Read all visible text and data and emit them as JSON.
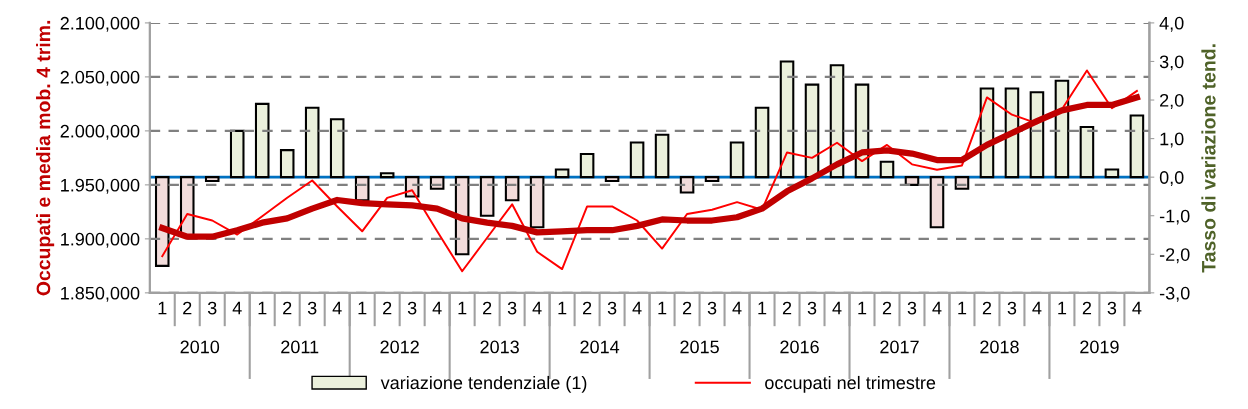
{
  "chart_data": {
    "type": "bar",
    "ylabel": "Occupati e media mob. 4 trim.",
    "y2label": "Tasso di variazione tend.",
    "categories": [
      "1",
      "2",
      "3",
      "4",
      "1",
      "2",
      "3",
      "4",
      "1",
      "2",
      "3",
      "4",
      "1",
      "2",
      "3",
      "4",
      "1",
      "2",
      "3",
      "4",
      "1",
      "2",
      "3",
      "4",
      "1",
      "2",
      "3",
      "4",
      "1",
      "2",
      "3",
      "4",
      "1",
      "2",
      "3",
      "4",
      "1",
      "2",
      "3",
      "4"
    ],
    "annotations": [
      "2010",
      "2011",
      "2012",
      "2013",
      "2014",
      "2015",
      "2016",
      "2017",
      "2018",
      "2019"
    ],
    "series": [
      {
        "name": "variazione tendenziale (1)",
        "axis": "y2",
        "color": "#ebf0dc",
        "colors": [
          "#f2dcdb",
          "#f2dcdb",
          "#f2dcdb",
          "#ebf0dc",
          "#ebf0dc",
          "#ebf0dc",
          "#ebf0dc",
          "#ebf0dc",
          "#f2dcdb",
          "#ebf0dc",
          "#f2dcdb",
          "#f2dcdb",
          "#f2dcdb",
          "#f2dcdb",
          "#f2dcdb",
          "#f2dcdb",
          "#ebf0dc",
          "#ebf0dc",
          "#f2dcdb",
          "#ebf0dc",
          "#ebf0dc",
          "#f2dcdb",
          "#f2dcdb",
          "#ebf0dc",
          "#ebf0dc",
          "#ebf0dc",
          "#ebf0dc",
          "#ebf0dc",
          "#ebf0dc",
          "#ebf0dc",
          "#f2dcdb",
          "#f2dcdb",
          "#f2dcdb",
          "#ebf0dc",
          "#ebf0dc",
          "#ebf0dc",
          "#ebf0dc",
          "#ebf0dc",
          "#ebf0dc",
          "#ebf0dc"
        ],
        "values": [
          -2.3,
          -1.5,
          -0.1,
          1.2,
          1.9,
          0.7,
          1.8,
          1.5,
          -0.6,
          0.1,
          -0.5,
          -0.3,
          -2.0,
          -1.0,
          -0.6,
          -1.3,
          0.2,
          0.6,
          -0.1,
          0.9,
          1.1,
          -0.4,
          -0.1,
          0.9,
          1.8,
          3.0,
          2.4,
          2.9,
          2.4,
          0.4,
          -0.2,
          -1.3,
          -0.3,
          2.3,
          2.3,
          2.2,
          2.5,
          1.3,
          0.2,
          1.6
        ]
      },
      {
        "name": "occupati nel trimestre",
        "type": "line",
        "color": "#ff0000",
        "values": [
          1884,
          1923,
          1917,
          1904,
          1921,
          1938,
          1954,
          1930,
          1907,
          1938,
          1945,
          1907,
          1870,
          1901,
          1932,
          1888,
          1872,
          1930,
          1930,
          1917,
          1891,
          1923,
          1927,
          1934,
          1927,
          1980,
          1975,
          1989,
          1972,
          1987,
          1969,
          1964,
          1968,
          2031,
          2015,
          2007,
          2020,
          2056,
          2021,
          2037
        ]
      },
      {
        "type": "line",
        "color": "#c00000",
        "values": [
          1910,
          1902,
          1902,
          1908,
          1915,
          1919,
          1928,
          1936,
          1933,
          1932,
          1931,
          1928,
          1919,
          1915,
          1912,
          1906,
          1907,
          1908,
          1908,
          1912,
          1918,
          1917,
          1917,
          1920,
          1928,
          1944,
          1956,
          1969,
          1980,
          1982,
          1979,
          1973,
          1973,
          1987,
          1998,
          2009,
          2019,
          2024,
          2024,
          2031
        ]
      }
    ],
    "ylim": [
      1850,
      2100
    ],
    "yticks": [
      {
        "value": 1850,
        "label": "1.850,000"
      },
      {
        "value": 1900,
        "label": "1.900,000"
      },
      {
        "value": 1950,
        "label": "1.950,000"
      },
      {
        "value": 2000,
        "label": "2.000,000"
      },
      {
        "value": 2050,
        "label": "2.050,000"
      },
      {
        "value": 2100,
        "label": "2.100,000"
      }
    ],
    "y2lim": [
      -3,
      4
    ],
    "y2ticks": [
      {
        "value": -3,
        "label": "-3,0"
      },
      {
        "value": -2,
        "label": "-2,0"
      },
      {
        "value": -1,
        "label": "-1,0"
      },
      {
        "value": 0,
        "label": "0,0"
      },
      {
        "value": 1,
        "label": "1,0"
      },
      {
        "value": 2,
        "label": "2,0"
      },
      {
        "value": 3,
        "label": "3,0"
      },
      {
        "value": 4,
        "label": "4,0"
      }
    ],
    "ref_lines": [
      {
        "axis": "y2",
        "value": 0,
        "color": "#0070c0"
      }
    ],
    "grid": "y",
    "legend": "bottom"
  }
}
